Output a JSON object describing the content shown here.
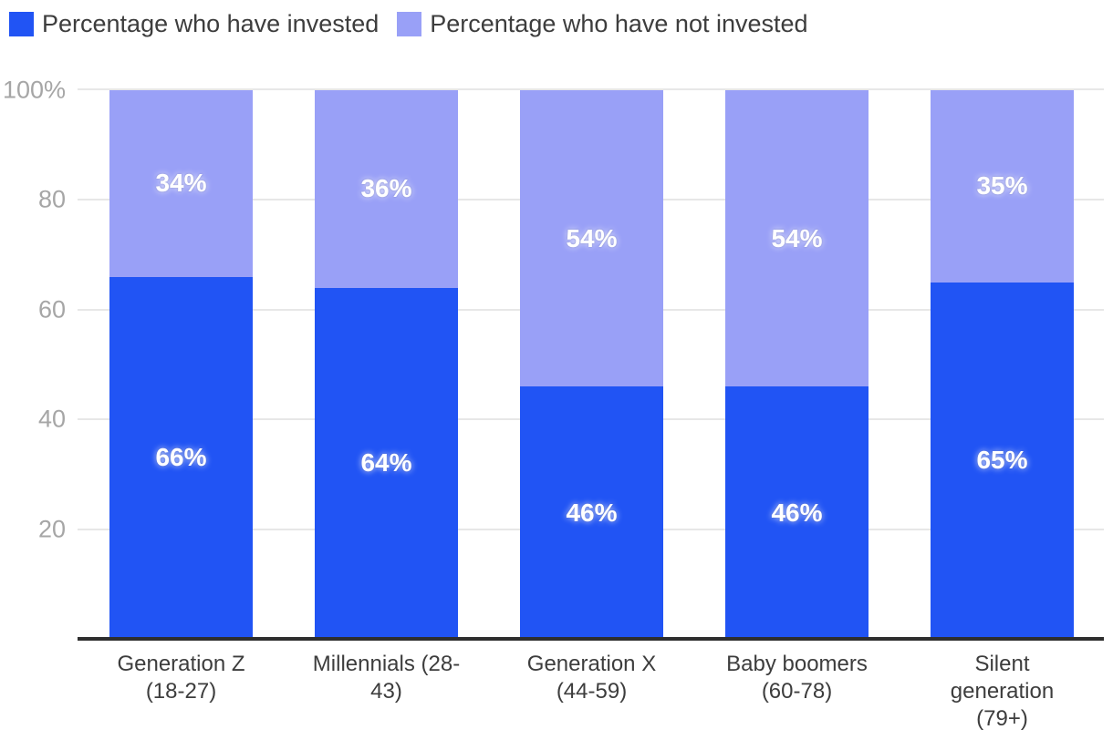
{
  "legend": {
    "items": [
      {
        "label": "Percentage who have invested",
        "color": "#2154f4"
      },
      {
        "label": "Percentage who have not invested",
        "color": "#99a0f7"
      }
    ]
  },
  "chart_data": {
    "type": "bar",
    "stacked": true,
    "orientation": "vertical",
    "title": "",
    "categories": [
      "Generation Z (18-27)",
      "Millennials (28-43)",
      "Generation X (44-59)",
      "Baby boomers (60-78)",
      "Silent generation (79+)"
    ],
    "tick_lines": [
      [
        "Generation Z",
        "(18-27)"
      ],
      [
        "Millennials (28-",
        "43)"
      ],
      [
        "Generation X",
        "(44-59)"
      ],
      [
        "Baby boomers",
        "(60-78)"
      ],
      [
        "Silent",
        "generation",
        "(79+)"
      ]
    ],
    "series": [
      {
        "name": "Percentage who have invested",
        "color": "#2154f4",
        "values": [
          66,
          64,
          46,
          46,
          65
        ],
        "data_labels": [
          "66%",
          "64%",
          "46%",
          "46%",
          "65%"
        ]
      },
      {
        "name": "Percentage who have not invested",
        "color": "#99a0f7",
        "values": [
          34,
          36,
          54,
          54,
          35
        ],
        "data_labels": [
          "34%",
          "36%",
          "54%",
          "54%",
          "35%"
        ]
      }
    ],
    "ylim": [
      0,
      100
    ],
    "yticks": [
      100,
      80,
      60,
      40,
      20
    ],
    "ytick_labels": [
      "100%",
      "80",
      "60",
      "40",
      "20"
    ],
    "xlabel": "",
    "ylabel": "",
    "grid": true,
    "legend_position": "top-left",
    "value_suffix": "%"
  }
}
